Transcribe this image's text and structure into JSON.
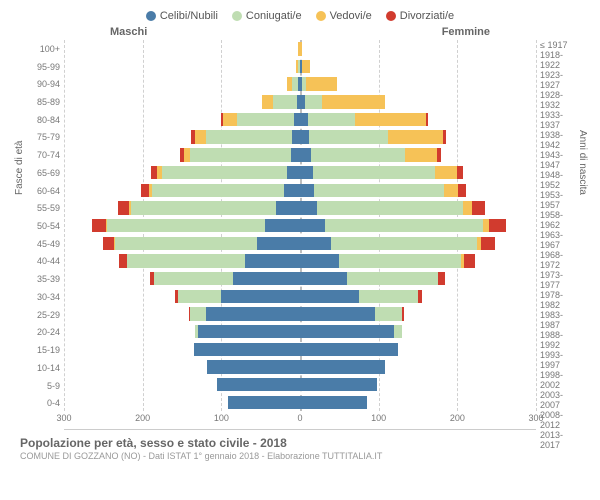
{
  "legend": {
    "items": [
      {
        "label": "Celibi/Nubili",
        "color": "#4a7ca8"
      },
      {
        "label": "Coniugati/e",
        "color": "#bfddb2"
      },
      {
        "label": "Vedovi/e",
        "color": "#f6c257"
      },
      {
        "label": "Divorziati/e",
        "color": "#d13b2e"
      }
    ]
  },
  "gender_labels": {
    "left": "Maschi",
    "right": "Femmine"
  },
  "y_axis_left_title": "Fasce di età",
  "y_axis_right_title": "Anni di nascita",
  "x_axis": {
    "min": -300,
    "max": 300,
    "ticks": [
      -300,
      -200,
      -100,
      0,
      100,
      200,
      300
    ],
    "labels": [
      "300",
      "200",
      "100",
      "0",
      "100",
      "200",
      "300"
    ]
  },
  "colors": {
    "single": "#4a7ca8",
    "married": "#bfddb2",
    "widowed": "#f6c257",
    "divorced": "#d13b2e",
    "grid": "#d0d0d0",
    "centerline": "#bdbdbd"
  },
  "title": "Popolazione per età, sesso e stato civile - 2018",
  "subtitle": "COMUNE DI GOZZANO (NO) - Dati ISTAT 1° gennaio 2018 - Elaborazione TUTTITALIA.IT",
  "age_groups": [
    {
      "age": "100+",
      "birth": "≤ 1917",
      "m": {
        "single": 0,
        "married": 0,
        "widowed": 2,
        "divorced": 0
      },
      "f": {
        "single": 0,
        "married": 0,
        "widowed": 3,
        "divorced": 0
      }
    },
    {
      "age": "95-99",
      "birth": "1918-1922",
      "m": {
        "single": 0,
        "married": 2,
        "widowed": 3,
        "divorced": 0
      },
      "f": {
        "single": 2,
        "married": 1,
        "widowed": 10,
        "divorced": 0
      }
    },
    {
      "age": "90-94",
      "birth": "1923-1927",
      "m": {
        "single": 2,
        "married": 8,
        "widowed": 6,
        "divorced": 0
      },
      "f": {
        "single": 3,
        "married": 4,
        "widowed": 40,
        "divorced": 0
      }
    },
    {
      "age": "85-89",
      "birth": "1928-1932",
      "m": {
        "single": 4,
        "married": 30,
        "widowed": 14,
        "divorced": 0
      },
      "f": {
        "single": 6,
        "married": 22,
        "widowed": 80,
        "divorced": 0
      }
    },
    {
      "age": "80-84",
      "birth": "1933-1937",
      "m": {
        "single": 8,
        "married": 72,
        "widowed": 18,
        "divorced": 2
      },
      "f": {
        "single": 10,
        "married": 60,
        "widowed": 90,
        "divorced": 3
      }
    },
    {
      "age": "75-79",
      "birth": "1938-1942",
      "m": {
        "single": 10,
        "married": 110,
        "widowed": 14,
        "divorced": 4
      },
      "f": {
        "single": 12,
        "married": 100,
        "widowed": 70,
        "divorced": 4
      }
    },
    {
      "age": "70-74",
      "birth": "1943-1947",
      "m": {
        "single": 12,
        "married": 128,
        "widowed": 8,
        "divorced": 5
      },
      "f": {
        "single": 14,
        "married": 120,
        "widowed": 40,
        "divorced": 5
      }
    },
    {
      "age": "65-69",
      "birth": "1948-1952",
      "m": {
        "single": 16,
        "married": 160,
        "widowed": 6,
        "divorced": 8
      },
      "f": {
        "single": 16,
        "married": 155,
        "widowed": 28,
        "divorced": 8
      }
    },
    {
      "age": "60-64",
      "birth": "1953-1957",
      "m": {
        "single": 20,
        "married": 168,
        "widowed": 4,
        "divorced": 10
      },
      "f": {
        "single": 18,
        "married": 165,
        "widowed": 18,
        "divorced": 10
      }
    },
    {
      "age": "55-59",
      "birth": "1958-1962",
      "m": {
        "single": 30,
        "married": 185,
        "widowed": 3,
        "divorced": 14
      },
      "f": {
        "single": 22,
        "married": 185,
        "widowed": 12,
        "divorced": 16
      }
    },
    {
      "age": "50-54",
      "birth": "1963-1967",
      "m": {
        "single": 45,
        "married": 200,
        "widowed": 2,
        "divorced": 18
      },
      "f": {
        "single": 32,
        "married": 200,
        "widowed": 8,
        "divorced": 22
      }
    },
    {
      "age": "45-49",
      "birth": "1968-1972",
      "m": {
        "single": 55,
        "married": 180,
        "widowed": 1,
        "divorced": 14
      },
      "f": {
        "single": 40,
        "married": 185,
        "widowed": 5,
        "divorced": 18
      }
    },
    {
      "age": "40-44",
      "birth": "1973-1977",
      "m": {
        "single": 70,
        "married": 150,
        "widowed": 0,
        "divorced": 10
      },
      "f": {
        "single": 50,
        "married": 155,
        "widowed": 3,
        "divorced": 14
      }
    },
    {
      "age": "35-39",
      "birth": "1978-1982",
      "m": {
        "single": 85,
        "married": 100,
        "widowed": 0,
        "divorced": 6
      },
      "f": {
        "single": 60,
        "married": 115,
        "widowed": 1,
        "divorced": 8
      }
    },
    {
      "age": "30-34",
      "birth": "1983-1987",
      "m": {
        "single": 100,
        "married": 55,
        "widowed": 0,
        "divorced": 4
      },
      "f": {
        "single": 75,
        "married": 75,
        "widowed": 0,
        "divorced": 5
      }
    },
    {
      "age": "25-29",
      "birth": "1988-1992",
      "m": {
        "single": 120,
        "married": 20,
        "widowed": 0,
        "divorced": 1
      },
      "f": {
        "single": 95,
        "married": 35,
        "widowed": 0,
        "divorced": 2
      }
    },
    {
      "age": "20-24",
      "birth": "1993-1997",
      "m": {
        "single": 130,
        "married": 4,
        "widowed": 0,
        "divorced": 0
      },
      "f": {
        "single": 120,
        "married": 10,
        "widowed": 0,
        "divorced": 0
      }
    },
    {
      "age": "15-19",
      "birth": "1998-2002",
      "m": {
        "single": 135,
        "married": 0,
        "widowed": 0,
        "divorced": 0
      },
      "f": {
        "single": 125,
        "married": 0,
        "widowed": 0,
        "divorced": 0
      }
    },
    {
      "age": "10-14",
      "birth": "2003-2007",
      "m": {
        "single": 118,
        "married": 0,
        "widowed": 0,
        "divorced": 0
      },
      "f": {
        "single": 108,
        "married": 0,
        "widowed": 0,
        "divorced": 0
      }
    },
    {
      "age": "5-9",
      "birth": "2008-2012",
      "m": {
        "single": 105,
        "married": 0,
        "widowed": 0,
        "divorced": 0
      },
      "f": {
        "single": 98,
        "married": 0,
        "widowed": 0,
        "divorced": 0
      }
    },
    {
      "age": "0-4",
      "birth": "2013-2017",
      "m": {
        "single": 92,
        "married": 0,
        "widowed": 0,
        "divorced": 0
      },
      "f": {
        "single": 85,
        "married": 0,
        "widowed": 0,
        "divorced": 0
      }
    }
  ]
}
